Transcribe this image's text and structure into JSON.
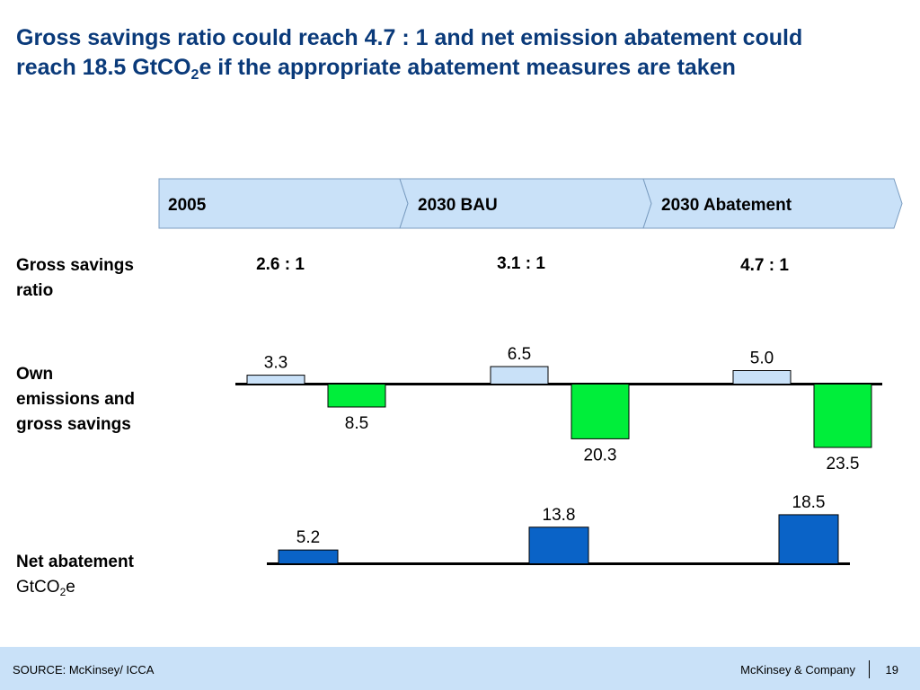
{
  "title": {
    "line1": "Gross savings ratio could reach 4.7 : 1 and net emission abatement could",
    "line2_pre": "reach 18.5 GtCO",
    "line2_sub": "2",
    "line2_post": "e if the appropriate abatement measures are taken"
  },
  "phases": [
    "2005",
    "2030 BAU",
    "2030 Abatement"
  ],
  "labels": {
    "ratio_line1": "Gross savings",
    "ratio_line2": "ratio",
    "own_line1": "Own",
    "own_line2": "emissions and",
    "own_line3": "gross savings",
    "net_line1": "Net abatement",
    "net_unit_pre": "GtCO",
    "net_unit_sub": "2",
    "net_unit_post": "e"
  },
  "ratios": [
    "2.6 : 1",
    "3.1 : 1",
    "4.7 : 1"
  ],
  "colors": {
    "own_emissions": "#c9e1f8",
    "gross_savings": "#00ee3a",
    "net_abatement": "#0a63c7",
    "phase_fill": "#c9e1f8",
    "title": "#0a3a7a"
  },
  "chart_data": [
    {
      "type": "bar",
      "categories": [
        "2005",
        "2030 BAU",
        "2030 Abatement"
      ],
      "series": [
        {
          "values": [
            3.3,
            6.5,
            5.0
          ]
        },
        {
          "values": [
            8.5,
            20.3,
            23.5
          ]
        }
      ],
      "value_labels": [
        [
          "3.3",
          "6.5",
          "5.0"
        ],
        [
          "8.5",
          "20.3",
          "23.5"
        ]
      ],
      "ylabel": ""
    },
    {
      "type": "bar",
      "categories": [
        "2005",
        "2030 BAU",
        "2030 Abatement"
      ],
      "values": [
        5.2,
        13.8,
        18.5
      ],
      "value_labels": [
        "5.2",
        "13.8",
        "18.5"
      ],
      "ylabel": ""
    }
  ],
  "footer": {
    "source": "SOURCE: McKinsey/ ICCA",
    "company": "McKinsey & Company",
    "page": "19"
  }
}
